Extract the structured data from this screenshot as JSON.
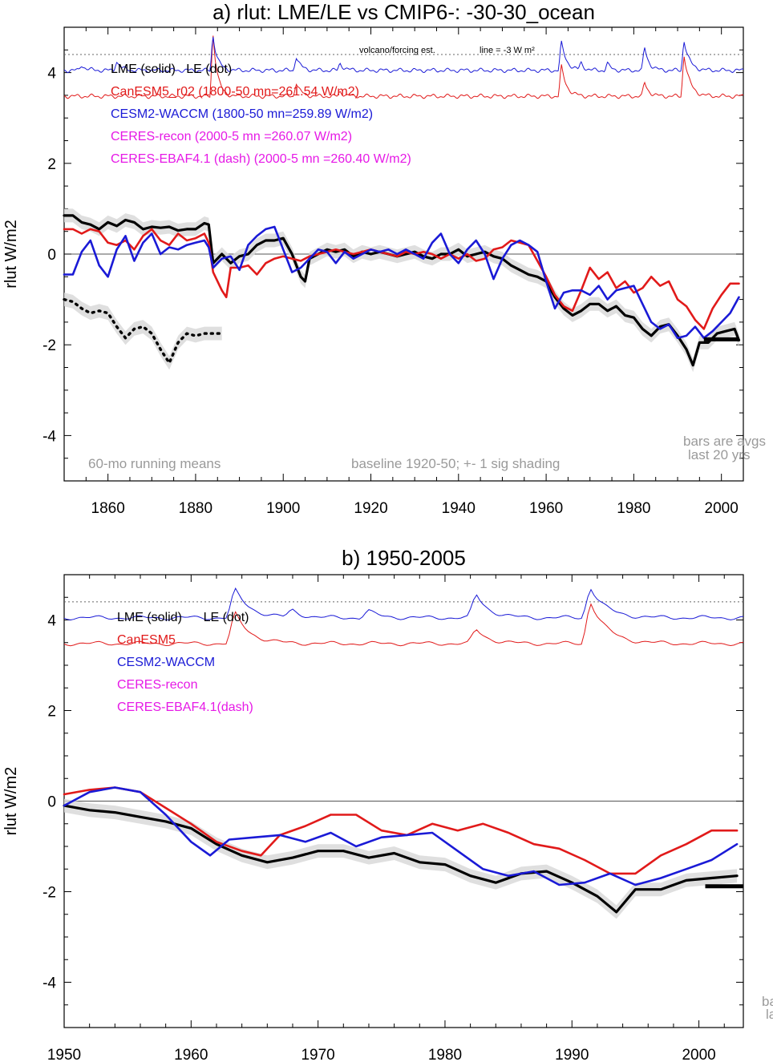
{
  "chart_data": [
    {
      "id": "a",
      "type": "line",
      "title": "a) rlut: LME/LE vs CMIP6-: -30-30_ocean",
      "ylabel": "rlut W/m2",
      "xlim": [
        1850,
        2005
      ],
      "ylim": [
        -5,
        5
      ],
      "xticks": [
        1860,
        1880,
        1900,
        1920,
        1940,
        1960,
        1980,
        2000
      ],
      "yticks": [
        -4,
        -2,
        0,
        2,
        4
      ],
      "forcing_note": "volcano/forcing est.",
      "line_note": "line = -3 W m²",
      "legend": [
        {
          "text": "LME (solid)   LE (dot)",
          "color": "#000000"
        },
        {
          "text": "CanESM5_r02 (1800-50 mn=261.54 W/m2)",
          "color": "#e11a1a"
        },
        {
          "text": "CESM2-WACCM (1800-50 mn=259.89 W/m2)",
          "color": "#1a1ad6"
        },
        {
          "text": "CERES-recon (2000-5 mn =260.07 W/m2)",
          "color": "#e619e6"
        },
        {
          "text": "CERES-EBAF4.1 (dash) (2000-5 mn =260.40 W/m2)",
          "color": "#e619e6"
        }
      ],
      "notes": {
        "left": "60-mo running means",
        "center": "baseline 1920-50; +- 1 sig shading",
        "right1": "bars are avgs",
        "right2": "last 20 yrs"
      },
      "bar": {
        "x": [
          1996,
          2004
        ],
        "y": -1.88
      },
      "series": [
        {
          "name": "LME (solid)",
          "color": "#000000",
          "shade": 0.15,
          "x": [
            1850,
            1852,
            1854,
            1856,
            1858,
            1860,
            1862,
            1864,
            1866,
            1868,
            1870,
            1872,
            1874,
            1876,
            1878,
            1880,
            1882,
            1883,
            1884,
            1886,
            1888,
            1890,
            1892,
            1894,
            1896,
            1898,
            1900,
            1902,
            1904,
            1905,
            1906,
            1908,
            1910,
            1912,
            1914,
            1916,
            1918,
            1920,
            1922,
            1924,
            1926,
            1928,
            1930,
            1932,
            1934,
            1936,
            1938,
            1940,
            1942,
            1944,
            1946,
            1948,
            1950,
            1952,
            1954,
            1956,
            1958,
            1960,
            1962,
            1964,
            1966,
            1968,
            1970,
            1972,
            1974,
            1976,
            1978,
            1980,
            1982,
            1984,
            1986,
            1988,
            1990,
            1992,
            1993.5,
            1995,
            1997,
            1999,
            2001,
            2003,
            2004
          ],
          "y": [
            0.85,
            0.85,
            0.7,
            0.65,
            0.55,
            0.7,
            0.62,
            0.75,
            0.7,
            0.55,
            0.6,
            0.58,
            0.6,
            0.52,
            0.55,
            0.55,
            0.68,
            0.65,
            -0.2,
            0.0,
            -0.2,
            -0.05,
            0.0,
            0.2,
            0.3,
            0.3,
            0.35,
            0.0,
            -0.5,
            -0.6,
            -0.1,
            0.0,
            0.1,
            0.05,
            0.1,
            -0.05,
            0.05,
            0.0,
            0.05,
            0.0,
            -0.05,
            0.0,
            0.05,
            -0.05,
            -0.1,
            0.0,
            0.0,
            0.1,
            -0.05,
            0.0,
            0.05,
            -0.05,
            -0.1,
            -0.25,
            -0.35,
            -0.45,
            -0.5,
            -0.6,
            -0.95,
            -1.2,
            -1.35,
            -1.25,
            -1.1,
            -1.1,
            -1.25,
            -1.15,
            -1.35,
            -1.4,
            -1.65,
            -1.8,
            -1.6,
            -1.55,
            -1.8,
            -2.1,
            -2.45,
            -1.95,
            -1.95,
            -1.75,
            -1.7,
            -1.65,
            -1.9
          ]
        },
        {
          "name": "LE (dot)",
          "color": "#000000",
          "style": "dot",
          "shade": 0.15,
          "x": [
            1850,
            1852,
            1854,
            1856,
            1858,
            1860,
            1862,
            1864,
            1866,
            1868,
            1870,
            1872,
            1874,
            1876,
            1878,
            1880,
            1882,
            1884,
            1886
          ],
          "y": [
            -1.0,
            -1.05,
            -1.2,
            -1.3,
            -1.25,
            -1.3,
            -1.6,
            -1.85,
            -1.65,
            -1.6,
            -1.75,
            -2.1,
            -2.4,
            -1.95,
            -1.75,
            -1.8,
            -1.75,
            -1.75,
            -1.75
          ]
        },
        {
          "name": "CanESM5_r02",
          "color": "#e11a1a",
          "x": [
            1850,
            1852,
            1854,
            1856,
            1858,
            1860,
            1862,
            1864,
            1866,
            1868,
            1870,
            1872,
            1874,
            1876,
            1878,
            1880,
            1882,
            1883,
            1884,
            1886,
            1887,
            1888,
            1890,
            1892,
            1894,
            1896,
            1898,
            1900,
            1902,
            1904,
            1906,
            1908,
            1910,
            1912,
            1914,
            1916,
            1918,
            1920,
            1922,
            1924,
            1926,
            1928,
            1930,
            1932,
            1934,
            1936,
            1938,
            1940,
            1942,
            1944,
            1946,
            1948,
            1950,
            1952,
            1954,
            1956,
            1958,
            1960,
            1962,
            1964,
            1966,
            1968,
            1970,
            1972,
            1974,
            1976,
            1978,
            1980,
            1982,
            1984,
            1986,
            1988,
            1990,
            1992,
            1994,
            1996,
            1998,
            2000,
            2002,
            2004
          ],
          "y": [
            0.55,
            0.55,
            0.45,
            0.55,
            0.5,
            0.25,
            0.2,
            0.3,
            0.1,
            0.4,
            0.55,
            0.3,
            0.2,
            0.45,
            0.3,
            0.35,
            0.45,
            0.25,
            -0.4,
            -0.8,
            -0.95,
            -0.3,
            -0.3,
            -0.25,
            -0.45,
            -0.2,
            -0.1,
            -0.05,
            -0.1,
            -0.15,
            -0.05,
            0.0,
            0.05,
            0.1,
            0.05,
            0.0,
            0.05,
            0.1,
            0.05,
            0.0,
            -0.05,
            0.05,
            0.0,
            0.05,
            0.0,
            -0.1,
            0.0,
            -0.1,
            0.0,
            -0.15,
            -0.1,
            0.1,
            0.15,
            0.3,
            0.25,
            0.2,
            -0.15,
            -0.5,
            -0.9,
            -1.15,
            -1.25,
            -0.8,
            -0.3,
            -0.55,
            -0.4,
            -0.75,
            -0.6,
            -0.85,
            -0.75,
            -0.5,
            -0.7,
            -0.6,
            -1.0,
            -1.15,
            -1.45,
            -1.65,
            -1.2,
            -0.9,
            -0.65,
            -0.65
          ]
        },
        {
          "name": "CESM2-WACCM",
          "color": "#1a1ad6",
          "x": [
            1850,
            1852,
            1854,
            1856,
            1858,
            1860,
            1862,
            1864,
            1866,
            1868,
            1870,
            1872,
            1874,
            1876,
            1878,
            1880,
            1882,
            1883,
            1884,
            1886,
            1888,
            1890,
            1892,
            1894,
            1896,
            1898,
            1900,
            1902,
            1904,
            1906,
            1908,
            1910,
            1912,
            1914,
            1916,
            1918,
            1920,
            1922,
            1924,
            1926,
            1928,
            1930,
            1932,
            1934,
            1936,
            1938,
            1940,
            1942,
            1944,
            1946,
            1948,
            1950,
            1952,
            1954,
            1956,
            1958,
            1960,
            1962,
            1964,
            1966,
            1968,
            1970,
            1972,
            1974,
            1976,
            1978,
            1980,
            1982,
            1984,
            1986,
            1988,
            1990,
            1992,
            1994,
            1996,
            1998,
            2000,
            2002,
            2004
          ],
          "y": [
            -0.45,
            -0.45,
            0.05,
            0.3,
            -0.25,
            -0.5,
            0.1,
            0.4,
            -0.15,
            0.25,
            0.45,
            0.0,
            0.15,
            0.1,
            0.2,
            0.25,
            0.3,
            0.15,
            -0.3,
            -0.1,
            -0.05,
            -0.35,
            0.2,
            0.4,
            0.55,
            0.6,
            0.1,
            -0.4,
            -0.3,
            -0.1,
            0.1,
            0.05,
            -0.2,
            0.05,
            -0.1,
            0.0,
            0.1,
            0.05,
            0.1,
            0.0,
            0.1,
            0.0,
            -0.1,
            0.25,
            0.45,
            0.0,
            -0.2,
            0.1,
            0.3,
            0.0,
            -0.55,
            -0.1,
            0.2,
            0.3,
            0.2,
            0.05,
            -0.6,
            -1.2,
            -0.85,
            -0.8,
            -0.8,
            -0.9,
            -0.7,
            -1.0,
            -0.8,
            -0.75,
            -0.7,
            -1.1,
            -1.5,
            -1.65,
            -1.55,
            -1.85,
            -1.8,
            -1.6,
            -1.85,
            -1.7,
            -1.5,
            -1.3,
            -0.95
          ]
        }
      ],
      "forcing": {
        "baseline": 4.4,
        "series": [
          {
            "name": "CanESM5",
            "color": "#e11a1a",
            "base": 3.48,
            "peaks": [
              [
                1884,
                1.35,
                1.0
              ],
              [
                1903,
                0.3,
                1.0
              ],
              [
                1913,
                0.1,
                1.0
              ],
              [
                1963.5,
                0.65,
                1.2
              ],
              [
                1982.5,
                0.3,
                1.0
              ],
              [
                1991.5,
                0.9,
                1.3
              ]
            ]
          },
          {
            "name": "CESM2-WACCM",
            "color": "#1a1ad6",
            "base": 4.05,
            "peaks": [
              [
                1854,
                0.12,
                1.0
              ],
              [
                1862,
                0.2,
                1.0
              ],
              [
                1884,
                0.75,
                1.0
              ],
              [
                1903,
                0.3,
                1.0
              ],
              [
                1913,
                0.15,
                1.0
              ],
              [
                1963.5,
                0.6,
                1.2
              ],
              [
                1968,
                0.15,
                0.8
              ],
              [
                1974,
                0.15,
                0.8
              ],
              [
                1982.5,
                0.5,
                1.0
              ],
              [
                1991.5,
                0.65,
                1.2
              ]
            ]
          }
        ]
      }
    },
    {
      "id": "b",
      "type": "line",
      "title": "b) 1950-2005",
      "ylabel": "rlut W/m2",
      "xlim": [
        1950,
        2003.5
      ],
      "ylim": [
        -5,
        5
      ],
      "xticks": [
        1950,
        1960,
        1970,
        1980,
        1990,
        2000
      ],
      "yticks": [
        -4,
        -2,
        0,
        2,
        4
      ],
      "legend": [
        {
          "text": "LME (solid)      LE (dot)",
          "color": "#000000"
        },
        {
          "text": "CanESM5",
          "color": "#e11a1a"
        },
        {
          "text": "CESM2-WACCM",
          "color": "#1a1ad6"
        },
        {
          "text": "CERES-recon",
          "color": "#e619e6"
        },
        {
          "text": "CERES-EBAF4.1(dash)",
          "color": "#e619e6"
        }
      ],
      "notes": {
        "right1": "ba",
        "right2": "la"
      },
      "bar": {
        "x": [
          2000.5,
          2003.5
        ],
        "y": -1.88
      },
      "series": [
        {
          "name": "LME (solid)",
          "color": "#000000",
          "shade": 0.15,
          "x": [
            1950,
            1952,
            1954,
            1956,
            1958,
            1960,
            1962,
            1964,
            1966,
            1968,
            1970,
            1972,
            1974,
            1976,
            1978,
            1980,
            1982,
            1984,
            1986,
            1988,
            1990,
            1992,
            1993.5,
            1995,
            1997,
            1999,
            2001,
            2003
          ],
          "y": [
            -0.1,
            -0.2,
            -0.25,
            -0.35,
            -0.45,
            -0.6,
            -0.95,
            -1.2,
            -1.35,
            -1.25,
            -1.1,
            -1.1,
            -1.25,
            -1.15,
            -1.35,
            -1.4,
            -1.65,
            -1.8,
            -1.6,
            -1.55,
            -1.8,
            -2.1,
            -2.45,
            -1.95,
            -1.95,
            -1.75,
            -1.7,
            -1.65
          ]
        },
        {
          "name": "CanESM5",
          "color": "#e11a1a",
          "x": [
            1950,
            1952,
            1954,
            1956,
            1958,
            1960,
            1962,
            1964,
            1965.5,
            1967,
            1969,
            1971,
            1973,
            1975,
            1977,
            1979,
            1981,
            1983,
            1985,
            1987,
            1989,
            1991,
            1993,
            1995,
            1997,
            1999,
            2001,
            2003
          ],
          "y": [
            0.15,
            0.25,
            0.3,
            0.2,
            -0.15,
            -0.5,
            -0.9,
            -1.1,
            -1.2,
            -0.75,
            -0.55,
            -0.3,
            -0.3,
            -0.65,
            -0.75,
            -0.5,
            -0.65,
            -0.5,
            -0.7,
            -0.95,
            -1.05,
            -1.3,
            -1.6,
            -1.6,
            -1.2,
            -0.95,
            -0.65,
            -0.65
          ]
        },
        {
          "name": "CESM2-WACCM",
          "color": "#1a1ad6",
          "x": [
            1950,
            1952,
            1954,
            1956,
            1958,
            1960,
            1961.5,
            1963,
            1965,
            1967,
            1969,
            1971,
            1973,
            1975,
            1977,
            1979,
            1981,
            1983,
            1985,
            1987,
            1989,
            1991,
            1993,
            1995,
            1997,
            1999,
            2001,
            2003
          ],
          "y": [
            -0.1,
            0.2,
            0.3,
            0.2,
            -0.3,
            -0.9,
            -1.2,
            -0.85,
            -0.8,
            -0.75,
            -0.9,
            -0.7,
            -1.0,
            -0.8,
            -0.75,
            -0.7,
            -1.1,
            -1.5,
            -1.65,
            -1.55,
            -1.85,
            -1.8,
            -1.6,
            -1.85,
            -1.7,
            -1.5,
            -1.3,
            -0.95
          ]
        }
      ],
      "forcing": {
        "baseline": 4.4,
        "series": [
          {
            "name": "CanESM5",
            "color": "#e11a1a",
            "base": 3.48,
            "peaks": [
              [
                1963.5,
                0.65,
                1.2
              ],
              [
                1982.5,
                0.3,
                1.0
              ],
              [
                1991.5,
                0.9,
                1.3
              ]
            ]
          },
          {
            "name": "CESM2-WACCM",
            "color": "#1a1ad6",
            "base": 4.05,
            "peaks": [
              [
                1963.5,
                0.6,
                1.2
              ],
              [
                1968,
                0.15,
                0.8
              ],
              [
                1974,
                0.15,
                0.8
              ],
              [
                1982.5,
                0.5,
                1.0
              ],
              [
                1991.5,
                0.65,
                1.2
              ]
            ]
          }
        ]
      }
    }
  ]
}
